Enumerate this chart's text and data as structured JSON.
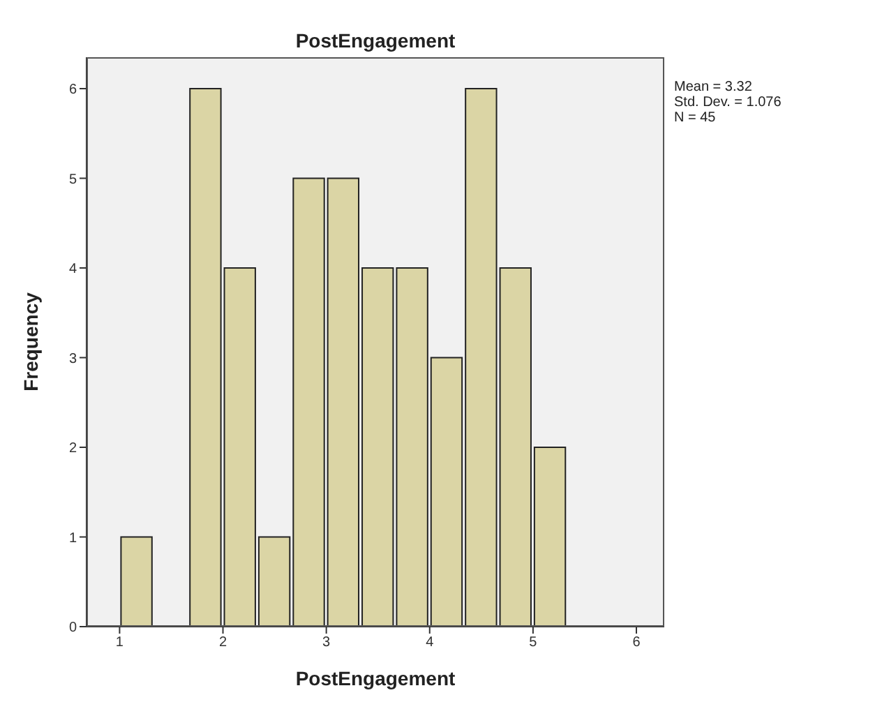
{
  "chart_data": {
    "type": "histogram",
    "title": "PostEngagement",
    "xlabel": "PostEngagement",
    "ylabel": "Frequency",
    "bins": [
      1,
      1.333,
      1.667,
      2,
      2.333,
      2.667,
      3,
      3.333,
      3.667,
      4,
      4.333,
      4.667,
      5,
      5.333
    ],
    "values": [
      1,
      0,
      6,
      4,
      1,
      5,
      5,
      4,
      4,
      3,
      6,
      4,
      2
    ],
    "color": "#dbd5a5",
    "xlim": [
      0.68,
      6.27
    ],
    "xticks": [
      1,
      2,
      3,
      4,
      5,
      6
    ],
    "ylim": [
      0,
      6.35
    ],
    "yticks": [
      0,
      1,
      2,
      3,
      4,
      5,
      6
    ],
    "grid": false,
    "annotations": [
      "Mean = 3.32",
      "Std. Dev. = 1.076",
      "N = 45"
    ]
  }
}
